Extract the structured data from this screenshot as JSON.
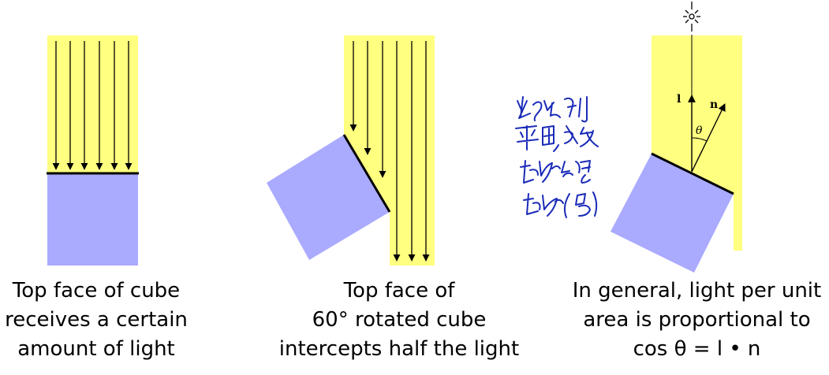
{
  "colors": {
    "light": "#ffff80",
    "cube": "#aaaaff",
    "ink": "#1a2bb8"
  },
  "panel1": {
    "caption": [
      "Top face of cube",
      "receives a certain",
      "amount of light"
    ]
  },
  "panel2": {
    "caption": [
      "Top face of",
      "60° rotated cube",
      "intercepts half the light"
    ]
  },
  "panel3": {
    "vector_l": "l",
    "vector_n": "n",
    "angle": "θ",
    "caption": [
      "In general, light per unit",
      "area is proportional to",
      "cos θ = l • n"
    ]
  },
  "handwritten_note": [
    "光照照到",
    "平面, 吸收",
    "越多 能量",
    "越多 (亮)"
  ]
}
